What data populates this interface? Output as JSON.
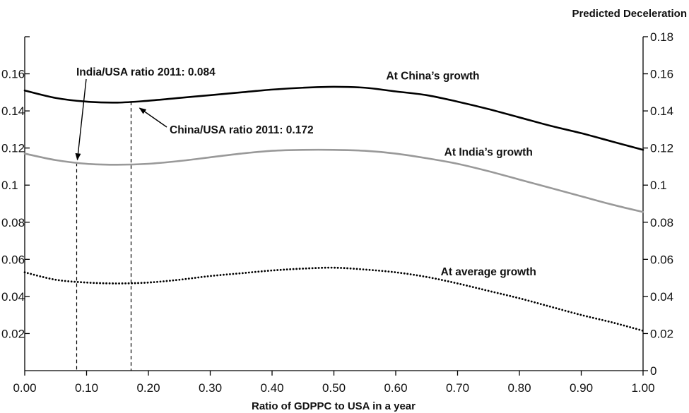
{
  "chart_data": {
    "type": "line",
    "xlabel": "Ratio of GDPPC to USA in a year",
    "ylabel": "Predicted Deceleration",
    "xlim": [
      0,
      1
    ],
    "ylim": [
      0,
      0.18
    ],
    "x_ticks": [
      "0.00",
      "0.10",
      "0.20",
      "0.30",
      "0.40",
      "0.50",
      "0.60",
      "0.70",
      "0.80",
      "0.90",
      "1.00"
    ],
    "y_ticks_right": [
      "0",
      "0.02",
      "0.04",
      "0.06",
      "0.08",
      "0.1",
      "0.12",
      "0.14",
      "0.16",
      "0.18"
    ],
    "y_ticks_left": [
      "0.02",
      "0.04",
      "0.06",
      "0.08",
      "0.1",
      "0.12",
      "0.14",
      "0.16"
    ],
    "series": [
      {
        "name": "At China's growth",
        "label": "At China’s growth",
        "color": "#000000",
        "style": "solid",
        "x": [
          0,
          0.05,
          0.1,
          0.15,
          0.2,
          0.25,
          0.3,
          0.35,
          0.4,
          0.45,
          0.5,
          0.55,
          0.6,
          0.65,
          0.7,
          0.75,
          0.8,
          0.85,
          0.9,
          0.95,
          1.0
        ],
        "y": [
          0.151,
          0.147,
          0.145,
          0.1445,
          0.1455,
          0.147,
          0.1485,
          0.15,
          0.1515,
          0.1525,
          0.153,
          0.1525,
          0.1505,
          0.1485,
          0.145,
          0.141,
          0.1365,
          0.132,
          0.128,
          0.1235,
          0.119
        ]
      },
      {
        "name": "At India's growth",
        "label": "At India’s growth",
        "color": "#999999",
        "style": "solid",
        "x": [
          0,
          0.05,
          0.1,
          0.15,
          0.2,
          0.25,
          0.3,
          0.35,
          0.4,
          0.45,
          0.5,
          0.55,
          0.6,
          0.65,
          0.7,
          0.75,
          0.8,
          0.85,
          0.9,
          0.95,
          1.0
        ],
        "y": [
          0.117,
          0.1135,
          0.1115,
          0.111,
          0.1115,
          0.113,
          0.115,
          0.117,
          0.1185,
          0.119,
          0.119,
          0.1185,
          0.117,
          0.1145,
          0.1115,
          0.1075,
          0.103,
          0.0985,
          0.094,
          0.0895,
          0.0855
        ]
      },
      {
        "name": "At average growth",
        "label": "At average growth",
        "color": "#000000",
        "style": "dotted",
        "x": [
          0,
          0.05,
          0.1,
          0.15,
          0.2,
          0.25,
          0.3,
          0.35,
          0.4,
          0.45,
          0.5,
          0.55,
          0.6,
          0.65,
          0.7,
          0.75,
          0.8,
          0.85,
          0.9,
          0.95,
          1.0
        ],
        "y": [
          0.053,
          0.049,
          0.0475,
          0.047,
          0.0475,
          0.049,
          0.051,
          0.0525,
          0.054,
          0.055,
          0.0555,
          0.0545,
          0.053,
          0.0505,
          0.047,
          0.043,
          0.039,
          0.0345,
          0.03,
          0.026,
          0.0215
        ]
      }
    ],
    "reference_lines": [
      {
        "x": 0.084,
        "label": "India/USA ratio 2011: 0.084"
      },
      {
        "x": 0.172,
        "label": "China/USA ratio 2011: 0.172"
      }
    ]
  }
}
